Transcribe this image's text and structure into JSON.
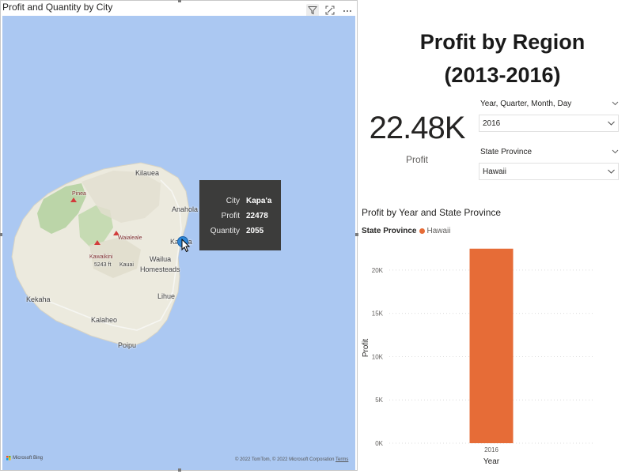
{
  "map_visual": {
    "title": "Profit and Quantity by City",
    "header_icons": [
      "filter-icon",
      "focus-mode-icon",
      "more-options-icon"
    ],
    "places": {
      "kilauea": "Kilauea",
      "anahola": "Anahola",
      "kapaa": "Kapa'a",
      "wailua_homesteads_1": "Wailua",
      "wailua_homesteads_2": "Homesteads",
      "lihue": "Lihue",
      "kalaheo": "Kalaheo",
      "kekaha": "Kekaha",
      "poipu": "Poipu",
      "kauai": "Kauai",
      "pinea": "Pinea",
      "waialeale": "Waialeale",
      "kawaikini": "Kawaikini",
      "kawaikini_elev": "5243 ft"
    },
    "tooltip": {
      "rows": [
        {
          "key": "City",
          "value": "Kapa'a"
        },
        {
          "key": "Profit",
          "value": "22478"
        },
        {
          "key": "Quantity",
          "value": "2055"
        }
      ]
    },
    "bing": "Microsoft Bing",
    "attribution": "© 2022 TomTom, © 2022 Microsoft Corporation",
    "terms": "Terms",
    "colors": {
      "water": "#abc8f2",
      "land": "#eceade",
      "marker": "#2f88d8",
      "tooltip_bg": "#3c3c3b"
    }
  },
  "report": {
    "title_line1": "Profit by Region",
    "title_line2": "(2013-2016)"
  },
  "card": {
    "value": "22.48K",
    "label": "Profit"
  },
  "slicers": [
    {
      "header": "Year, Quarter, Month, Day",
      "selected": "2016"
    },
    {
      "header": "State Province",
      "selected": "Hawaii"
    }
  ],
  "chart": {
    "title": "Profit by Year and State Province",
    "legend_title": "State Province"
  },
  "chart_data": {
    "type": "bar",
    "categories": [
      "2016"
    ],
    "series": [
      {
        "name": "Hawaii",
        "values": [
          22478
        ],
        "color": "#e66c37"
      }
    ],
    "xlabel": "Year",
    "ylabel": "Profit",
    "ylim": [
      0,
      22000
    ],
    "yticks": [
      0,
      5000,
      10000,
      15000,
      20000
    ],
    "ytick_labels": [
      "0K",
      "5K",
      "10K",
      "15K",
      "20K"
    ],
    "grid": true,
    "legend_position": "top-left"
  }
}
